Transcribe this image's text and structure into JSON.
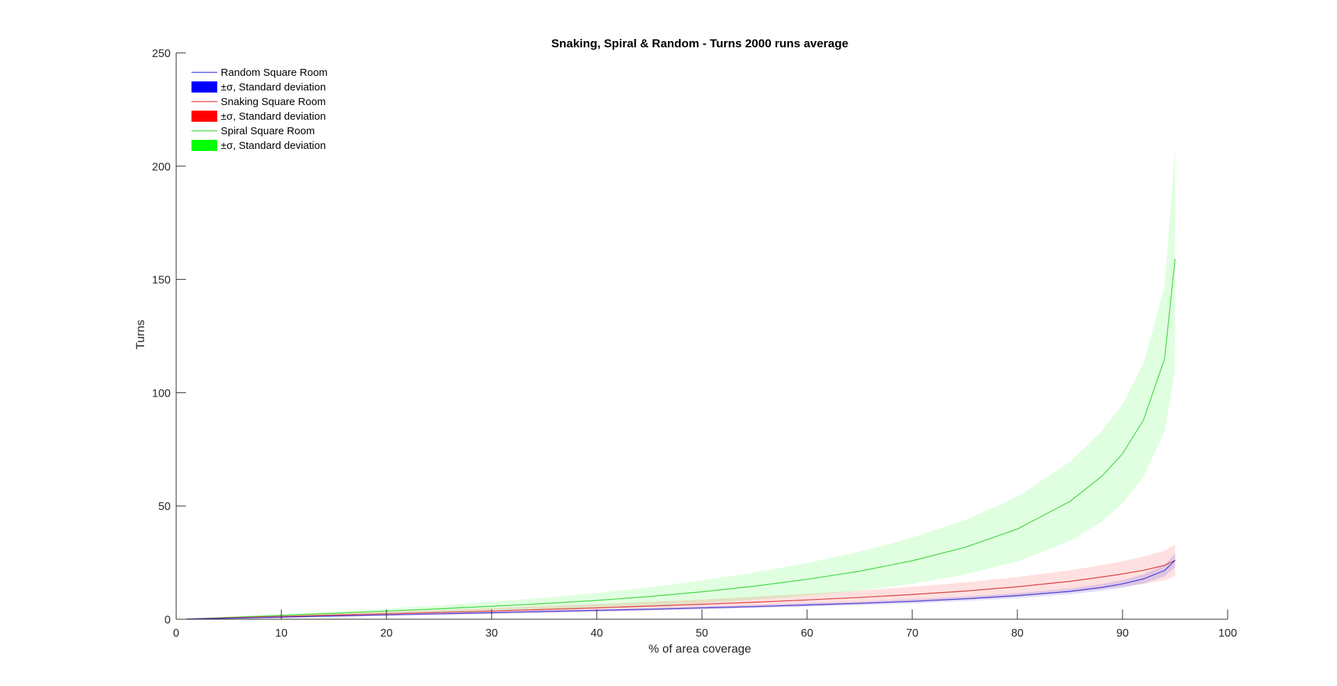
{
  "chart_data": {
    "type": "line",
    "title": "Snaking, Spiral & Random - Turns 2000 runs average",
    "xlabel": "% of area coverage",
    "ylabel": "Turns",
    "xlim": [
      0,
      100
    ],
    "ylim": [
      0,
      250
    ],
    "xticks": [
      0,
      10,
      20,
      30,
      40,
      50,
      60,
      70,
      80,
      90,
      100
    ],
    "yticks": [
      0,
      50,
      100,
      150,
      200,
      250
    ],
    "grid": false,
    "legend_position": "top-left",
    "x": [
      1,
      5,
      10,
      15,
      20,
      25,
      30,
      35,
      40,
      45,
      50,
      55,
      60,
      65,
      70,
      75,
      80,
      85,
      88,
      90,
      92,
      94,
      95
    ],
    "series": [
      {
        "name": "Random Square Room",
        "band_label": "±σ, Standard deviation",
        "color": "#0000ff",
        "band_color": "#0000ff",
        "values": [
          0.1,
          0.4,
          0.9,
          1.4,
          1.9,
          2.4,
          2.9,
          3.4,
          3.9,
          4.4,
          5.0,
          5.6,
          6.3,
          7.0,
          7.9,
          9.0,
          10.4,
          12.3,
          14.0,
          15.6,
          17.8,
          21.5,
          26.0
        ],
        "sd": [
          0.05,
          0.1,
          0.2,
          0.3,
          0.35,
          0.4,
          0.45,
          0.5,
          0.55,
          0.6,
          0.65,
          0.7,
          0.75,
          0.8,
          0.9,
          1.0,
          1.1,
          1.3,
          1.5,
          1.7,
          2.0,
          2.5,
          3.0
        ]
      },
      {
        "name": "Snaking Square Room",
        "band_label": "±σ, Standard deviation",
        "color": "#ff0000",
        "band_color": "#ff0000",
        "values": [
          0.1,
          0.6,
          1.2,
          1.8,
          2.4,
          3.0,
          3.6,
          4.3,
          5.0,
          5.8,
          6.6,
          7.5,
          8.5,
          9.6,
          10.9,
          12.4,
          14.3,
          16.7,
          18.6,
          20.0,
          21.6,
          23.8,
          26.0
        ],
        "sd": [
          0.1,
          0.3,
          0.5,
          0.7,
          0.9,
          1.1,
          1.3,
          1.5,
          1.7,
          1.9,
          2.1,
          2.4,
          2.7,
          3.0,
          3.4,
          3.8,
          4.3,
          4.9,
          5.3,
          5.6,
          6.0,
          6.5,
          7.0
        ]
      },
      {
        "name": "Spiral Square Room",
        "band_label": "±σ, Standard deviation",
        "color": "#00ff00",
        "band_color": "#00ff00",
        "values": [
          0.1,
          0.8,
          1.7,
          2.6,
          3.6,
          4.6,
          5.7,
          6.9,
          8.3,
          10.0,
          12.1,
          14.6,
          17.6,
          21.2,
          25.8,
          31.7,
          39.8,
          52.0,
          63.0,
          73.0,
          88.0,
          115.0,
          159.0
        ],
        "sd": [
          0.1,
          0.3,
          0.5,
          0.8,
          1.1,
          1.5,
          2.0,
          2.6,
          3.3,
          4.1,
          5.0,
          6.0,
          7.2,
          8.6,
          10.2,
          12.0,
          14.3,
          17.5,
          20.0,
          22.0,
          25.0,
          32.0,
          49.0
        ]
      }
    ]
  }
}
